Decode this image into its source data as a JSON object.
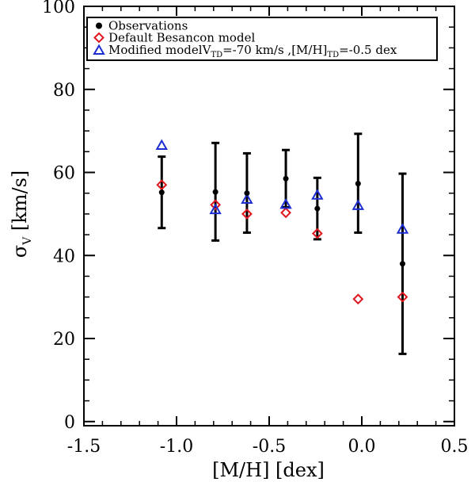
{
  "chart_data": {
    "type": "scatter",
    "title": "",
    "xlabel": "[M/H] [dex]",
    "ylabel_symbol": "σ",
    "ylabel_sub": "V",
    "ylabel_unit": " [km/s]",
    "xlim": [
      -1.5,
      0.5
    ],
    "ylim": [
      -1,
      100
    ],
    "xticks": [
      -1.5,
      -1.0,
      -0.5,
      0.0,
      0.5
    ],
    "xtick_labels": [
      "-1.5",
      "-1.0",
      "-0.5",
      "0.0",
      "0.5"
    ],
    "yticks": [
      0,
      20,
      40,
      60,
      80,
      100
    ],
    "ytick_labels": [
      "0",
      "20",
      "40",
      "60",
      "80",
      "100"
    ],
    "legend_position": "top",
    "series": [
      {
        "name": "Observations",
        "marker": "filled-circle",
        "color": "#000000",
        "points": [
          {
            "x": -1.08,
            "y": 55.2,
            "ylo": 46.6,
            "yhi": 63.8
          },
          {
            "x": -0.79,
            "y": 55.3,
            "ylo": 43.6,
            "yhi": 67.1
          },
          {
            "x": -0.62,
            "y": 55.0,
            "ylo": 45.5,
            "yhi": 64.6
          },
          {
            "x": -0.41,
            "y": 58.5,
            "ylo": 51.6,
            "yhi": 65.4
          },
          {
            "x": -0.24,
            "y": 51.3,
            "ylo": 43.9,
            "yhi": 58.7
          },
          {
            "x": -0.02,
            "y": 57.3,
            "ylo": 45.5,
            "yhi": 69.3
          },
          {
            "x": 0.22,
            "y": 38.0,
            "ylo": 16.3,
            "yhi": 59.7
          }
        ]
      },
      {
        "name": "Default Besancon model",
        "marker": "open-diamond",
        "color": "#e0161d",
        "points": [
          {
            "x": -1.08,
            "y": 57.0
          },
          {
            "x": -0.79,
            "y": 52.2
          },
          {
            "x": -0.62,
            "y": 50.0
          },
          {
            "x": -0.41,
            "y": 50.3
          },
          {
            "x": -0.24,
            "y": 45.3
          },
          {
            "x": -0.02,
            "y": 29.5
          },
          {
            "x": 0.22,
            "y": 30.0
          }
        ]
      },
      {
        "name": "Modified model",
        "legend_parts": [
          "Modified model",
          "V",
          "TD",
          "=-70 km/s ,",
          "[M/H]",
          "TD",
          "=-0.5 dex"
        ],
        "marker": "open-triangle",
        "color": "#1c2dd1",
        "points": [
          {
            "x": -1.08,
            "y": 66.5
          },
          {
            "x": -0.79,
            "y": 51.0
          },
          {
            "x": -0.62,
            "y": 53.5
          },
          {
            "x": -0.41,
            "y": 52.3
          },
          {
            "x": -0.24,
            "y": 54.5
          },
          {
            "x": -0.02,
            "y": 52.0
          },
          {
            "x": 0.22,
            "y": 46.3
          }
        ]
      }
    ]
  }
}
